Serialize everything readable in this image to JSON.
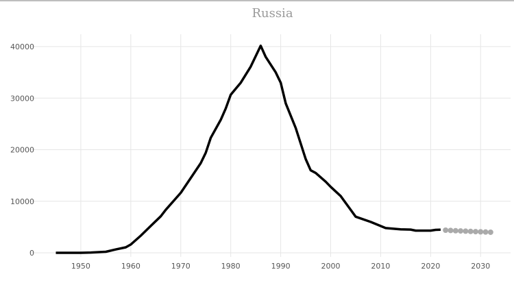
{
  "chart_data": {
    "type": "line",
    "title": "Russia",
    "xlabel": "",
    "ylabel": "",
    "xlim": [
      1940,
      2036
    ],
    "ylim": [
      0,
      42400
    ],
    "grid": true,
    "x_ticks": [
      "1950",
      "1960",
      "1970",
      "1980",
      "1990",
      "2000",
      "2010",
      "2020",
      "2030"
    ],
    "y_ticks": [
      "0",
      "10000",
      "20000",
      "30000",
      "40000"
    ],
    "colors": {
      "line": "#000000",
      "projection": "#aaaaaa",
      "grid": "#e6e6e6"
    },
    "series": [
      {
        "style": "solid-line",
        "x": [
          1945,
          1949,
          1950,
          1952,
          1955,
          1957,
          1959,
          1960,
          1962,
          1964,
          1966,
          1967,
          1970,
          1972,
          1974,
          1975,
          1976,
          1978,
          1979,
          1980,
          1982,
          1984,
          1986,
          1987,
          1989,
          1990,
          1991,
          1993,
          1995,
          1996,
          1997,
          1999,
          2000,
          2002,
          2005,
          2008,
          2011,
          2014,
          2016,
          2017,
          2019,
          2020,
          2021,
          2022
        ],
        "y": [
          0,
          1,
          5,
          50,
          200,
          650,
          1060,
          1605,
          3322,
          5221,
          7089,
          8339,
          11643,
          14500,
          17400,
          19400,
          22300,
          25800,
          28000,
          30665,
          33000,
          36100,
          40159,
          38000,
          35000,
          33000,
          29000,
          24200,
          18200,
          16000,
          15500,
          13800,
          12800,
          11000,
          7000,
          6000,
          4800,
          4550,
          4500,
          4300,
          4300,
          4300,
          4450,
          4480
        ]
      },
      {
        "style": "projected-dots",
        "x": [
          2023,
          2024,
          2025,
          2026,
          2027,
          2028,
          2029,
          2030,
          2031,
          2032
        ],
        "y": [
          4385,
          4330,
          4280,
          4240,
          4200,
          4150,
          4110,
          4070,
          4030,
          3990
        ]
      }
    ]
  }
}
